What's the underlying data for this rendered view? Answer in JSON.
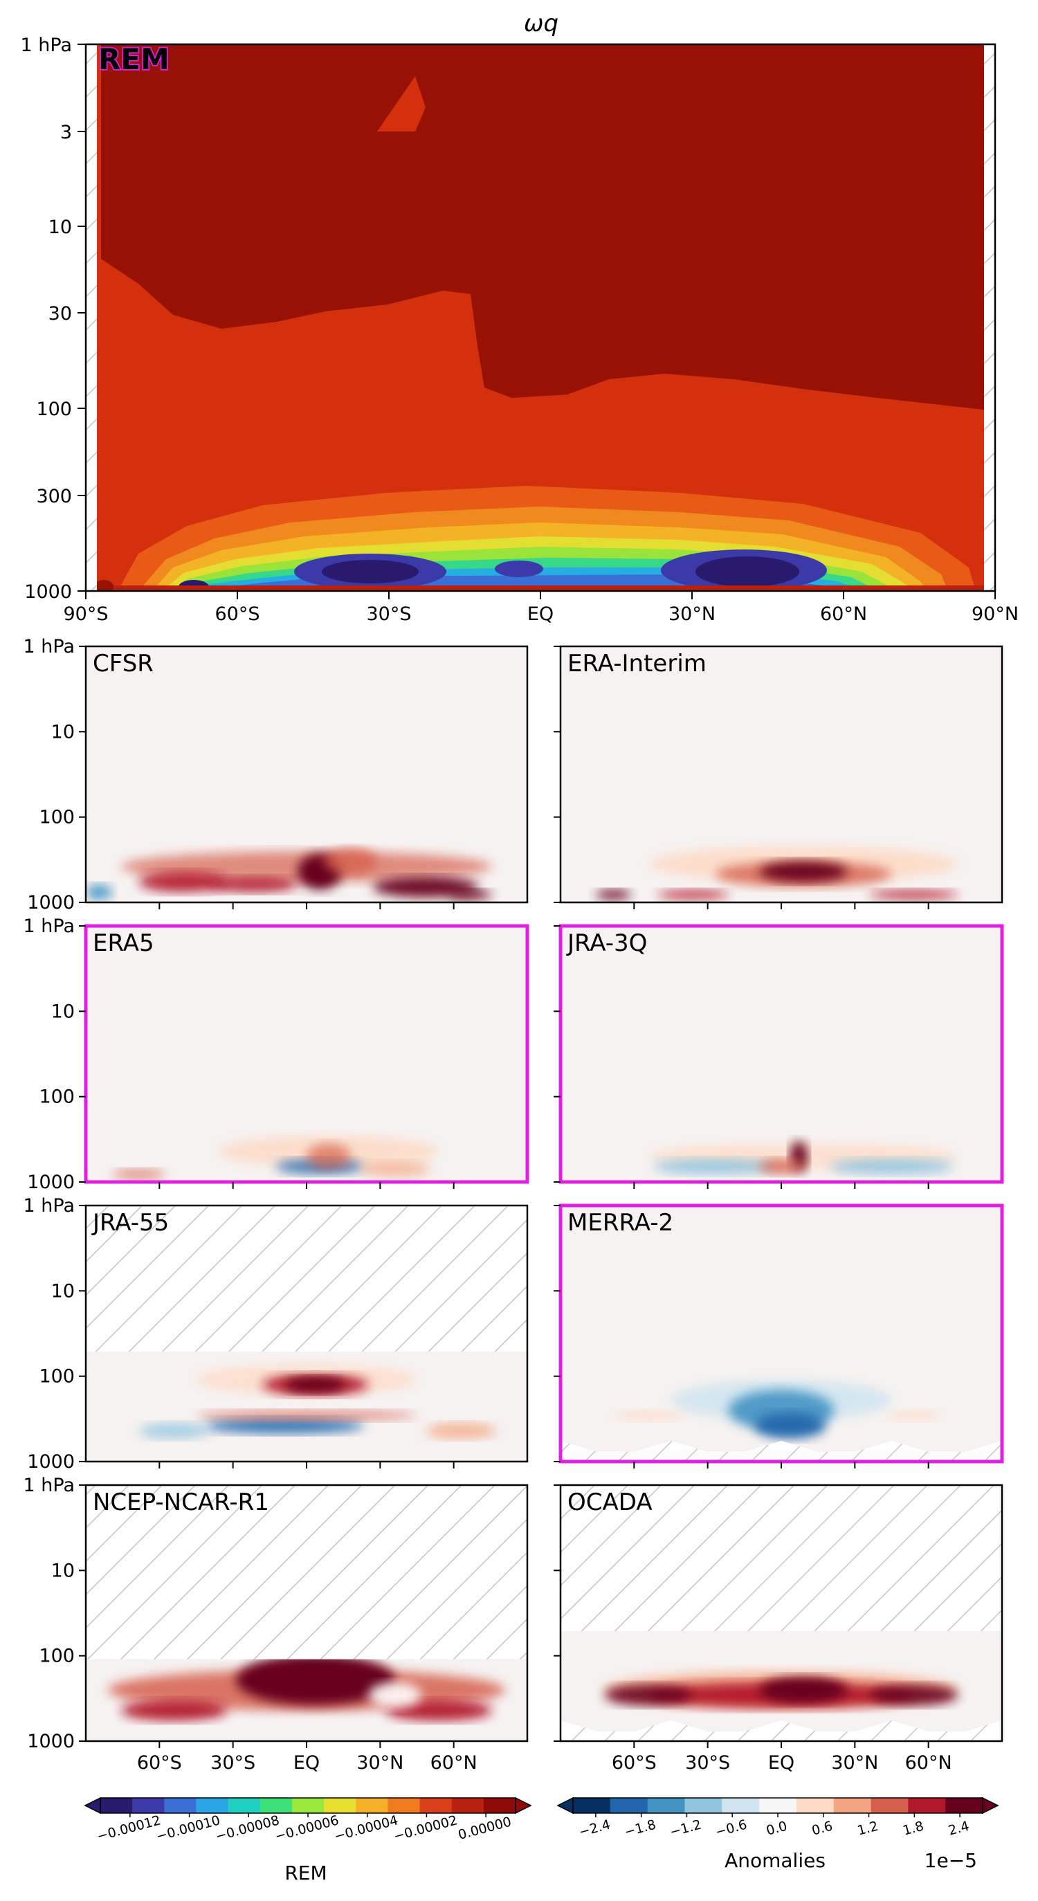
{
  "chart_data": {
    "type": "heatmap",
    "title": "ωq",
    "main_panel": {
      "label": "REM",
      "label_color": "#e020e0",
      "yaxis": {
        "scale": "log",
        "ticks": [
          "1 hPa",
          "3",
          "10",
          "30",
          "100",
          "300",
          "1000"
        ],
        "range_hpa": [
          1000,
          1
        ]
      },
      "xaxis": {
        "ticks": [
          "90°S",
          "60°S",
          "30°S",
          "EQ",
          "30°N",
          "60°N",
          "90°N"
        ],
        "range_deg": [
          -90,
          90
        ]
      },
      "levels": [
        -0.00012,
        -0.0001,
        -8e-05,
        -6e-05,
        -4e-05,
        -2e-05,
        0.0
      ],
      "notes": "Near-zero values aloft; strong negative minima near 1000 hPa at about 35°S and 40°N"
    },
    "anomaly_panels": [
      {
        "name": "CFSR",
        "highlighted": false,
        "hatched_top": false
      },
      {
        "name": "ERA-Interim",
        "highlighted": false,
        "hatched_top": false
      },
      {
        "name": "ERA5",
        "highlighted": true,
        "hatched_top": false
      },
      {
        "name": "JRA-3Q",
        "highlighted": true,
        "hatched_top": false
      },
      {
        "name": "JRA-55",
        "highlighted": false,
        "hatched_top": true
      },
      {
        "name": "MERRA-2",
        "highlighted": true,
        "hatched_top": false
      },
      {
        "name": "NCEP-NCAR-R1",
        "highlighted": false,
        "hatched_top": true
      },
      {
        "name": "OCADA",
        "highlighted": false,
        "hatched_top": true
      }
    ],
    "small_yticks": [
      "1 hPa",
      "10",
      "100",
      "1000"
    ],
    "small_xticks": [
      "60°S",
      "30°S",
      "EQ",
      "30°N",
      "60°N"
    ],
    "highlight_color": "#e020e0",
    "colorbar_rem": {
      "label": "REM",
      "ticks": [
        "−0.00012",
        "−0.00010",
        "−0.00008",
        "−0.00006",
        "−0.00004",
        "−0.00002",
        "0.00000"
      ],
      "colors": [
        "#2a1a6e",
        "#3c3aa8",
        "#3b6fd8",
        "#2aa6e6",
        "#20d0c0",
        "#3ee07a",
        "#9ae83a",
        "#e8e030",
        "#f6b027",
        "#f07a1e",
        "#d9401a",
        "#b82010",
        "#8e0a08"
      ]
    },
    "colorbar_anom": {
      "label": "Anomalies",
      "scale_note": "1e−5",
      "ticks": [
        "−2.4",
        "−1.8",
        "−1.2",
        "−0.6",
        "0.0",
        "0.6",
        "1.2",
        "1.8",
        "2.4"
      ],
      "colors": [
        "#053061",
        "#2166ac",
        "#4393c3",
        "#92c5de",
        "#d1e5f0",
        "#f7f7f7",
        "#fddbc7",
        "#f4a582",
        "#d6604d",
        "#b2182b",
        "#67001f"
      ]
    }
  }
}
